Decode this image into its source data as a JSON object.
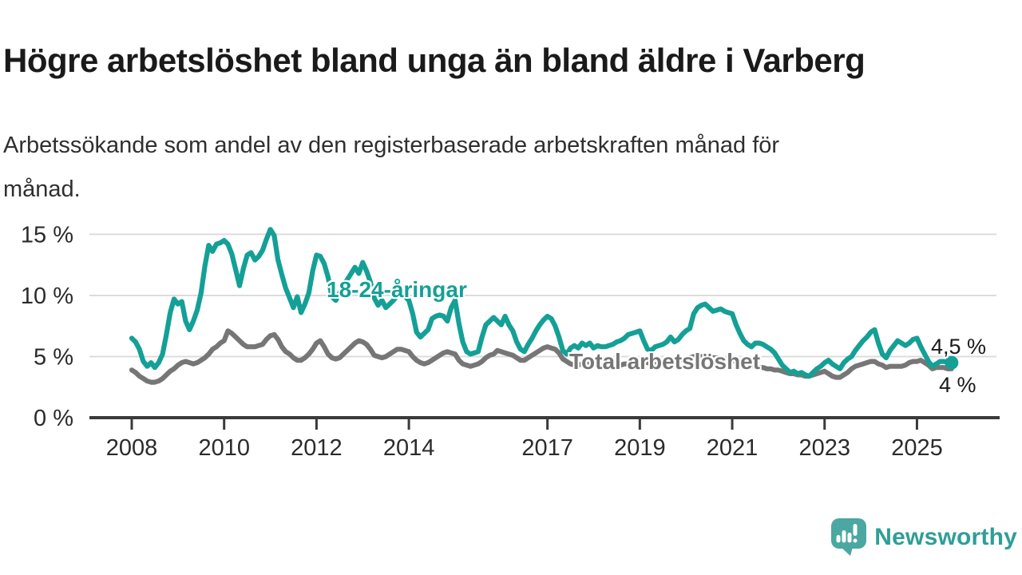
{
  "header": {
    "title": "Högre arbetslöshet bland unga än bland äldre i Varberg",
    "subtitle": "Arbetssökande som andel av den registerbaserade arbetskraften månad för månad."
  },
  "chart_data": {
    "type": "line",
    "x_start": "2008-01",
    "x_end": "2025-10",
    "frequency": "monthly",
    "grid": "horizontal",
    "ylim": [
      0,
      16
    ],
    "ytick_values": [
      0,
      5,
      10,
      15
    ],
    "ytick_labels": [
      "0 %",
      "5 %",
      "10 %",
      "15 %"
    ],
    "xtick_years": [
      2008,
      2010,
      2012,
      2014,
      2017,
      2019,
      2021,
      2023,
      2025
    ],
    "series": [
      {
        "name": "Total arbetslöshet",
        "color": "#767676",
        "end_value_label": "4 %",
        "values": [
          3.9,
          3.7,
          3.4,
          3.2,
          3.0,
          2.9,
          2.9,
          3.0,
          3.2,
          3.5,
          3.8,
          4.0,
          4.3,
          4.5,
          4.6,
          4.5,
          4.4,
          4.5,
          4.7,
          4.9,
          5.2,
          5.6,
          5.8,
          6.1,
          6.3,
          7.1,
          6.9,
          6.6,
          6.3,
          6.0,
          5.8,
          5.8,
          5.8,
          5.9,
          6.0,
          6.4,
          6.7,
          6.8,
          6.4,
          5.8,
          5.4,
          5.2,
          4.9,
          4.7,
          4.7,
          4.9,
          5.2,
          5.6,
          6.1,
          6.3,
          5.8,
          5.2,
          4.9,
          4.8,
          4.9,
          5.2,
          5.5,
          5.8,
          6.1,
          6.3,
          6.2,
          6.0,
          5.6,
          5.1,
          5.0,
          4.9,
          5.0,
          5.2,
          5.4,
          5.6,
          5.6,
          5.5,
          5.4,
          5.0,
          4.7,
          4.5,
          4.4,
          4.5,
          4.7,
          4.9,
          5.1,
          5.3,
          5.4,
          5.3,
          5.2,
          4.7,
          4.4,
          4.3,
          4.2,
          4.3,
          4.4,
          4.6,
          4.9,
          5.1,
          5.2,
          5.5,
          5.4,
          5.3,
          5.2,
          5.1,
          4.9,
          4.7,
          4.7,
          4.9,
          5.1,
          5.3,
          5.5,
          5.7,
          5.8,
          5.7,
          5.6,
          5.3,
          4.8,
          4.6,
          4.4,
          4.3,
          4.3,
          4.4,
          4.4,
          4.5,
          4.4,
          4.4,
          4.3,
          4.3,
          4.2,
          4.2,
          4.3,
          4.3,
          4.4,
          4.4,
          4.5,
          4.6,
          4.7,
          4.6,
          4.5,
          4.4,
          4.4,
          4.5,
          4.5,
          4.6,
          4.6,
          4.6,
          4.7,
          4.8,
          4.8,
          4.9,
          5.0,
          5.0,
          5.0,
          4.9,
          4.9,
          4.9,
          4.9,
          4.8,
          4.8,
          4.7,
          4.7,
          4.6,
          4.5,
          4.4,
          4.3,
          4.2,
          4.2,
          4.1,
          4.1,
          4.0,
          4.0,
          3.9,
          3.9,
          3.8,
          3.7,
          3.6,
          3.6,
          3.5,
          3.5,
          3.4,
          3.4,
          3.5,
          3.6,
          3.7,
          3.8,
          3.6,
          3.4,
          3.3,
          3.3,
          3.5,
          3.7,
          4.0,
          4.2,
          4.3,
          4.4,
          4.5,
          4.6,
          4.6,
          4.4,
          4.3,
          4.1,
          4.2,
          4.2,
          4.2,
          4.2,
          4.3,
          4.5,
          4.6,
          4.6,
          4.7,
          4.5,
          4.3,
          4.0,
          4.1,
          4.1,
          4.1,
          4.0,
          4.0
        ]
      },
      {
        "name": "18-24-åringar",
        "color": "#14A096",
        "end_value_label": "4,5 %",
        "end_dot": true,
        "values": [
          6.5,
          6.2,
          5.6,
          4.6,
          4.2,
          4.5,
          4.1,
          4.5,
          5.2,
          6.8,
          8.6,
          9.7,
          9.3,
          9.5,
          7.9,
          7.2,
          7.9,
          8.8,
          10.2,
          12.4,
          14.1,
          13.6,
          14.2,
          14.3,
          14.5,
          14.2,
          13.4,
          12.1,
          10.8,
          12.2,
          13.3,
          13.5,
          12.9,
          13.2,
          13.7,
          14.6,
          15.4,
          14.9,
          12.9,
          11.7,
          10.6,
          9.8,
          9.0,
          9.9,
          8.6,
          9.3,
          10.2,
          12.0,
          13.3,
          13.2,
          12.6,
          11.5,
          9.9,
          9.6,
          10.2,
          10.8,
          11.3,
          11.8,
          12.3,
          11.8,
          12.7,
          12.0,
          11.1,
          9.8,
          9.2,
          9.6,
          9.0,
          9.3,
          9.6,
          10.0,
          10.2,
          9.9,
          9.6,
          8.5,
          7.0,
          6.6,
          6.9,
          7.2,
          8.1,
          8.3,
          8.4,
          8.3,
          7.9,
          9.0,
          9.6,
          7.7,
          6.2,
          5.4,
          5.2,
          5.3,
          5.4,
          6.6,
          7.6,
          7.9,
          8.2,
          7.9,
          7.6,
          8.3,
          7.6,
          7.1,
          6.2,
          5.6,
          5.4,
          6.0,
          6.5,
          7.1,
          7.6,
          8.0,
          8.3,
          8.1,
          7.5,
          6.6,
          5.5,
          5.2,
          5.7,
          5.9,
          5.7,
          6.1,
          5.9,
          6.1,
          5.7,
          5.9,
          5.8,
          5.8,
          5.9,
          6.0,
          6.2,
          6.3,
          6.5,
          6.8,
          6.9,
          7.0,
          7.1,
          6.3,
          5.6,
          5.5,
          5.8,
          5.9,
          6.0,
          6.2,
          6.6,
          6.2,
          6.4,
          6.8,
          7.1,
          7.3,
          8.5,
          9.0,
          9.2,
          9.3,
          9.0,
          8.7,
          8.8,
          8.9,
          8.7,
          8.6,
          8.5,
          7.6,
          6.9,
          6.3,
          6.0,
          5.8,
          6.1,
          6.1,
          6.0,
          5.8,
          5.6,
          5.3,
          4.8,
          4.3,
          4.0,
          3.7,
          3.8,
          3.6,
          3.7,
          3.5,
          3.4,
          3.7,
          4.0,
          4.2,
          4.5,
          4.7,
          4.4,
          4.2,
          4.0,
          4.5,
          4.8,
          5.0,
          5.5,
          5.9,
          6.3,
          6.6,
          7.0,
          7.2,
          6.1,
          5.2,
          4.9,
          5.5,
          5.9,
          6.3,
          6.1,
          5.9,
          6.1,
          6.4,
          6.5,
          5.8,
          5.2,
          4.6,
          4.2,
          4.4,
          4.6,
          4.6,
          4.5,
          4.5
        ]
      }
    ],
    "annotations": {
      "young_label": "18-24-åringar",
      "total_label": "Total arbetslöshet",
      "young_end_label": "4,5 %",
      "total_end_label": "4 %"
    },
    "colors": {
      "gridline": "#dcdcdc",
      "axis": "#3a3a3a",
      "tick_text": "#2b2b2b"
    }
  },
  "branding": {
    "name": "Newsworthy",
    "color": "#2F9E97",
    "icon": "newsworthy-chart-bubble-icon"
  }
}
